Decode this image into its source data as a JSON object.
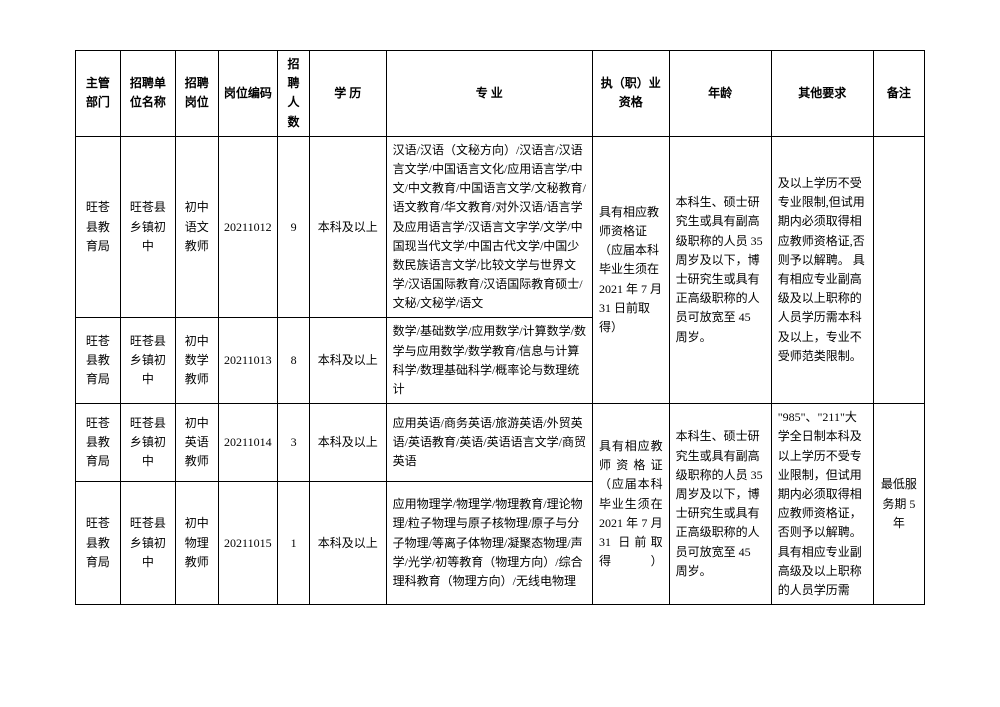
{
  "headers": {
    "dept": "主管部门",
    "unit": "招聘单位名称",
    "post": "招聘岗位",
    "code": "岗位编码",
    "num": "招聘人数",
    "edu": "学 历",
    "major": "专 业",
    "qual": "执（职）业资格",
    "age": "年龄",
    "other": "其他要求",
    "note": "备注"
  },
  "rows": [
    {
      "dept": "旺苍县教育局",
      "unit": "旺苍县乡镇初中",
      "post": "初中语文教师",
      "code": "20211012",
      "num": "9",
      "edu": "本科及以上",
      "major": "汉语/汉语（文秘方向）/汉语言/汉语言文学/中国语言文化/应用语言学/中文/中文教育/中国语言文学/文秘教育/语文教育/华文教育/对外汉语/语言学及应用语言学/汉语言文字学/文学/中国现当代文学/中国古代文学/中国少数民族语言文学/比较文学与世界文学/汉语国际教育/汉语国际教育硕士/文秘/文秘学/语文"
    },
    {
      "dept": "旺苍县教育局",
      "unit": "旺苍县乡镇初中",
      "post": "初中数学教师",
      "code": "20211013",
      "num": "8",
      "edu": "本科及以上",
      "major": "数学/基础数学/应用数学/计算数学/数学与应用数学/数学教育/信息与计算科学/数理基础科学/概率论与数理统计"
    },
    {
      "dept": "旺苍县教育局",
      "unit": "旺苍县乡镇初中",
      "post": "初中英语教师",
      "code": "20211014",
      "num": "3",
      "edu": "本科及以上",
      "major": "应用英语/商务英语/旅游英语/外贸英语/英语教育/英语/英语语言文学/商贸英语"
    },
    {
      "dept": "旺苍县教育局",
      "unit": "旺苍县乡镇初中",
      "post": "初中物理教师",
      "code": "20211015",
      "num": "1",
      "edu": "本科及以上",
      "major": "应用物理学/物理学/物理教育/理论物理/粒子物理与原子核物理/原子与分子物理/等离子体物理/凝聚态物理/声学/光学/初等教育（物理方向）/综合理科教育（物理方向）/无线电物理"
    }
  ],
  "merged": {
    "qual1": "具有相应教师资格证（应届本科毕业生须在 2021 年 7 月 31 日前取得）",
    "age1": "本科生、硕士研究生或具有副高级职称的人员 35 周岁及以下，博士研究生或具有正高级职称的人员可放宽至 45 周岁。",
    "other1": "及以上学历不受专业限制,但试用期内必须取得相应教师资格证,否则予以解聘。 具有相应专业副高级及以上职称的人员学历需本科及以上，专业不受师范类限制。",
    "qual2": "具有相应教师资格证（应届本科毕业生须在 2021 年 7 月 31 日前取得）",
    "age2": "本科生、硕士研究生或具有副高级职称的人员 35 周岁及以下，博士研究生或具有正高级职称的人员可放宽至 45 周岁。",
    "other2": "\"985\"、\"211\"大学全日制本科及以上学历不受专业限制，但试用期内必须取得相应教师资格证，否则予以解聘。 具有相应专业副高级及以上职称的人员学历需",
    "note2": "最低服务期 5 年"
  }
}
